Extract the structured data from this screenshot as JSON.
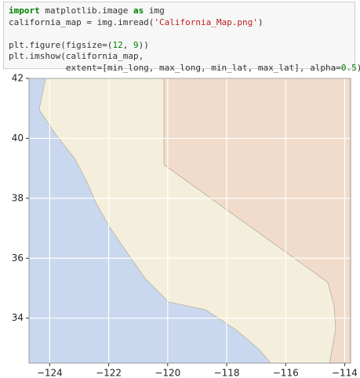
{
  "code": {
    "lines": [
      [
        "import",
        " matplotlib.image ",
        "as",
        " img"
      ],
      [
        "california_map = img.imread(",
        "'California_Map.png'",
        ")"
      ],
      [],
      [
        "plt.figure(figsize=(",
        "12",
        ", ",
        "9",
        "))"
      ],
      [
        "plt.imshow(california_map,"
      ],
      [
        "           extent=[min_long, max_long, min_lat, max_lat], alpha=",
        "0.5",
        ");"
      ]
    ]
  },
  "plot": {
    "xlim": [
      -124.7,
      -113.8
    ],
    "ylim": [
      32.5,
      42
    ],
    "xticks": [
      {
        "value": -124,
        "label": "−124"
      },
      {
        "value": -122,
        "label": "−122"
      },
      {
        "value": -120,
        "label": "−120"
      },
      {
        "value": -118,
        "label": "−118"
      },
      {
        "value": -116,
        "label": "−116"
      },
      {
        "value": -114,
        "label": "−114"
      }
    ],
    "yticks": [
      34,
      36,
      38,
      40,
      42
    ],
    "grid": true
  }
}
